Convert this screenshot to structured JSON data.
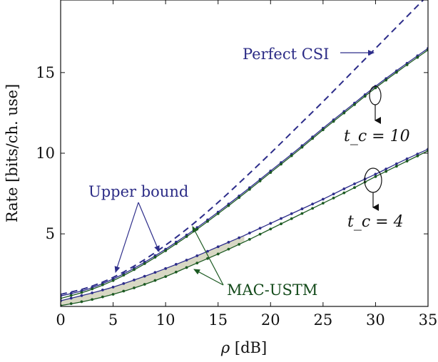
{
  "chart_data": {
    "type": "line",
    "xlabel_prefix": "ρ",
    "xlabel_unit": " [dB]",
    "ylabel": "Rate [bits/ch. use]",
    "xlim": [
      0,
      35
    ],
    "ylim": [
      0.5,
      19.5
    ],
    "xticks": [
      0,
      5,
      10,
      15,
      20,
      25,
      30,
      35
    ],
    "yticks": [
      5,
      10,
      15
    ],
    "grid": false,
    "x": [
      0,
      2.5,
      5,
      7.5,
      10,
      12.5,
      15,
      17.5,
      20,
      22.5,
      25,
      27.5,
      30,
      32.5,
      35
    ],
    "series": [
      {
        "group": "perfect-csi",
        "color": "#2d2d8a",
        "dashed": true,
        "markers": false,
        "values": [
          1.25,
          1.65,
          2.3,
          3.2,
          4.3,
          5.55,
          6.95,
          8.45,
          10.0,
          11.6,
          13.2,
          14.85,
          16.5,
          18.15,
          19.8
        ]
      },
      {
        "group": "tc10-upper",
        "color": "#2d2d8a",
        "dashed": false,
        "markers": true,
        "values": [
          1.15,
          1.55,
          2.2,
          3.05,
          4.05,
          5.15,
          6.35,
          7.6,
          8.9,
          10.2,
          11.55,
          12.85,
          14.15,
          15.35,
          16.5
        ]
      },
      {
        "group": "tc10-mac-ustm",
        "color": "#1c5a22",
        "dashed": false,
        "markers": true,
        "values": [
          1.0,
          1.45,
          2.1,
          2.95,
          3.95,
          5.05,
          6.25,
          7.5,
          8.8,
          10.1,
          11.45,
          12.75,
          14.05,
          15.25,
          16.4
        ]
      },
      {
        "group": "tc4-upper",
        "color": "#2d2d8a",
        "dashed": false,
        "markers": true,
        "values": [
          0.85,
          1.25,
          1.7,
          2.25,
          2.85,
          3.5,
          4.2,
          4.9,
          5.65,
          6.4,
          7.15,
          7.95,
          8.7,
          9.5,
          10.25
        ]
      },
      {
        "group": "tc4-mac-ustm",
        "color": "#1c5a22",
        "dashed": false,
        "markers": true,
        "values": [
          0.55,
          0.85,
          1.25,
          1.75,
          2.35,
          3.05,
          3.75,
          4.5,
          5.3,
          6.1,
          6.9,
          7.7,
          8.55,
          9.35,
          10.15
        ]
      }
    ],
    "annotations": {
      "perfect_csi": "Perfect CSI",
      "upper_bound": "Upper bound",
      "mac_ustm": "MAC-USTM",
      "tc10": "t_c = 10",
      "tc4": "t_c = 4"
    },
    "colors": {
      "blue": "#2d2d8a",
      "green": "#1c5a22",
      "gap_fill": "#d8d8c4"
    }
  }
}
